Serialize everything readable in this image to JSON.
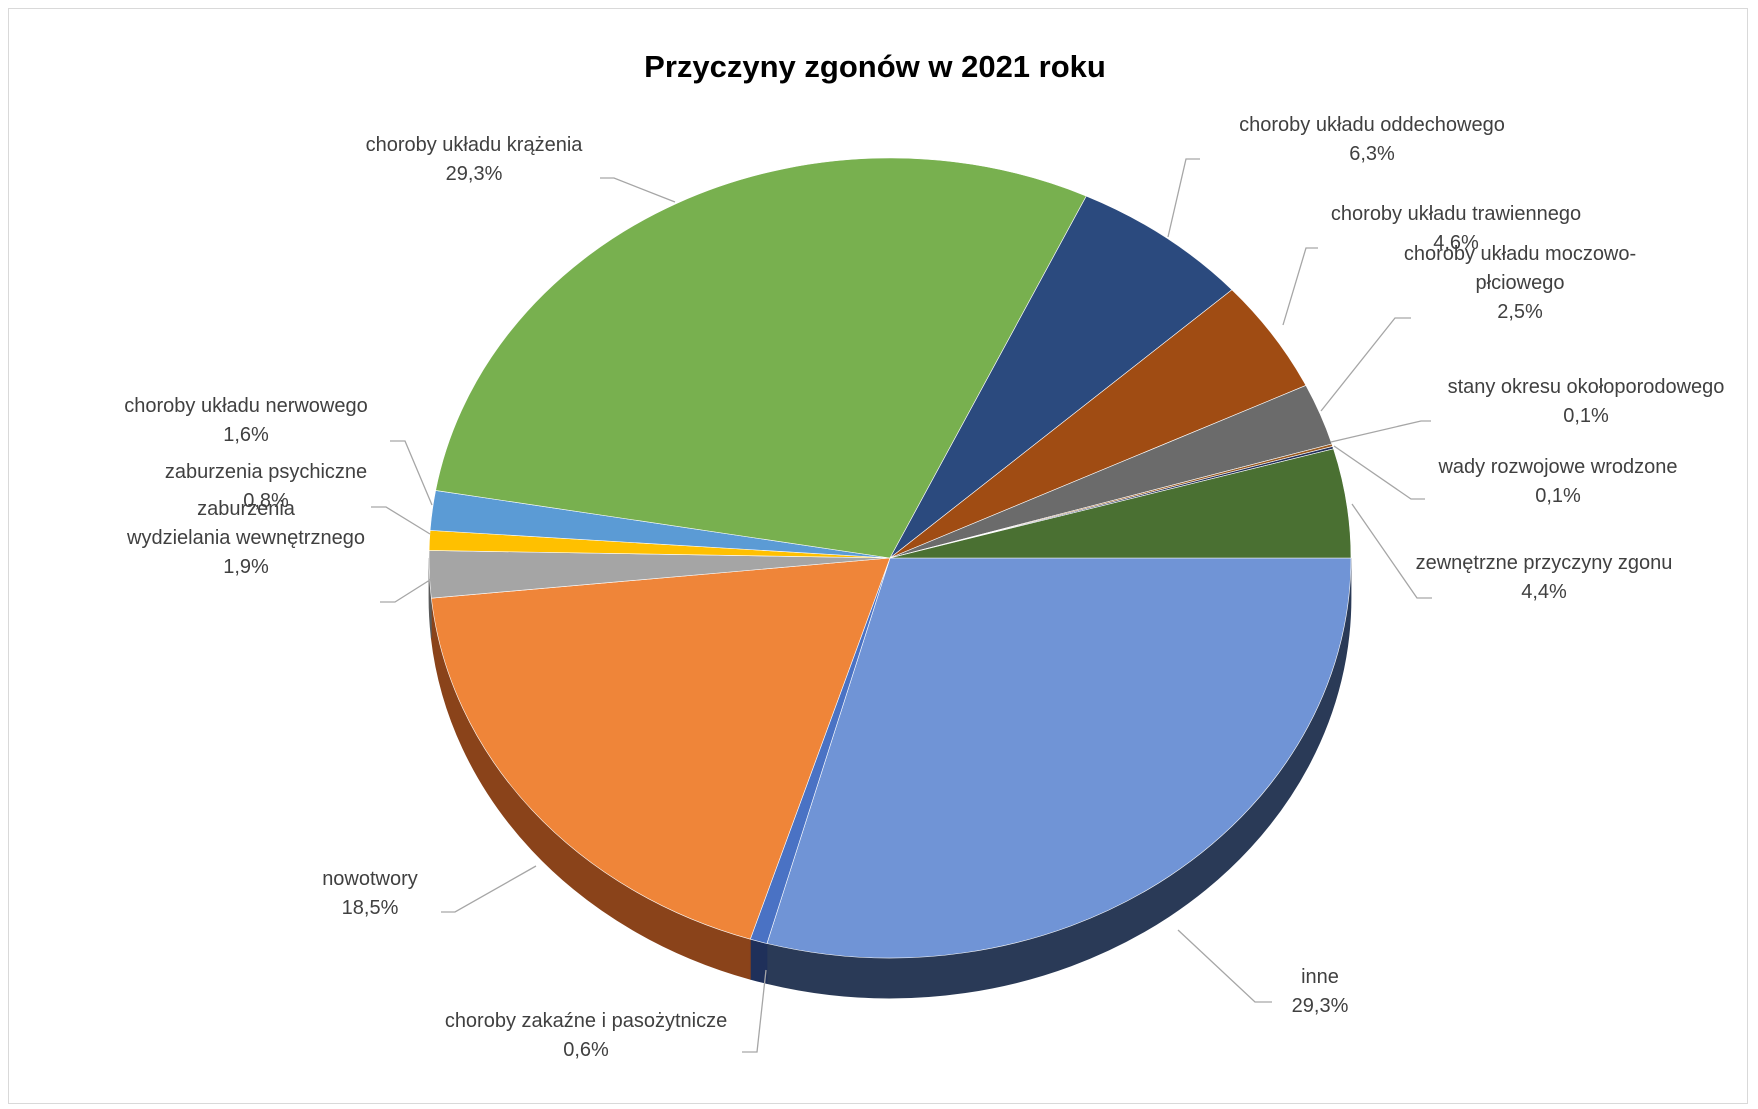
{
  "chart_data": {
    "type": "pie",
    "title": "Przyczyny zgonów w 2021 roku",
    "slices": [
      {
        "name": "inne",
        "value": 29.3,
        "label_lines": [
          "inne",
          "29,3%"
        ],
        "color": "#7094d6",
        "side_color": "#2a3a57"
      },
      {
        "name": "choroby zakaźne i pasożytnicze",
        "value": 0.6,
        "label_lines": [
          "choroby zakaźne i pasożytnicze",
          "0,6%"
        ],
        "color": "#4a72c4",
        "side_color": "#1f305a"
      },
      {
        "name": "nowotwory",
        "value": 18.5,
        "label_lines": [
          "nowotwory",
          "18,5%"
        ],
        "color": "#ef8539",
        "side_color": "#8a431a"
      },
      {
        "name": "zaburzenia wydzielania wewnętrznego",
        "value": 1.9,
        "label_lines": [
          "zaburzenia",
          "wydzielania wewnętrznego",
          "1,9%"
        ],
        "color": "#a5a5a5",
        "side_color": "#5a5a5a"
      },
      {
        "name": "zaburzenia psychiczne",
        "value": 0.8,
        "label_lines": [
          "zaburzenia psychiczne",
          "0,8%"
        ],
        "color": "#ffc000",
        "side_color": "#8a6a00"
      },
      {
        "name": "choroby układu nerwowego",
        "value": 1.6,
        "label_lines": [
          "choroby układu nerwowego",
          "1,6%"
        ],
        "color": "#5b9bd5",
        "side_color": "#2a4f70"
      },
      {
        "name": "choroby układu krążenia",
        "value": 29.3,
        "label_lines": [
          "choroby układu krążenia",
          "29,3%"
        ],
        "color": "#78b04f",
        "side_color": "#3c5a26"
      },
      {
        "name": "choroby układu oddechowego",
        "value": 6.3,
        "label_lines": [
          "choroby układu oddechowego",
          "6,3%"
        ],
        "color": "#2b4a7e",
        "side_color": "#16264a"
      },
      {
        "name": "choroby układu trawiennego",
        "value": 4.6,
        "label_lines": [
          "choroby układu trawiennego",
          "4,6%"
        ],
        "color": "#a04c13",
        "side_color": "#5a2a0a"
      },
      {
        "name": "choroby układu moczowo-płciowego",
        "value": 2.5,
        "label_lines": [
          "choroby układu moczowo-",
          "płciowego",
          "2,5%"
        ],
        "color": "#6b6b6b",
        "side_color": "#3a3a3a"
      },
      {
        "name": "stany okresu okołoporodowego",
        "value": 0.1,
        "label_lines": [
          "stany okresu okołoporodowego",
          "0,1%"
        ],
        "color": "#9a5a20",
        "side_color": "#5a3410"
      },
      {
        "name": "wady rozwojowe wrodzone",
        "value": 0.1,
        "label_lines": [
          "wady rozwojowe wrodzone",
          "0,1%"
        ],
        "color": "#22305a",
        "side_color": "#111a33"
      },
      {
        "name": "zewnętrzne przyczyny zgonu",
        "value": 4.4,
        "label_lines": [
          "zewnętrzne przyczyny zgonu",
          "4,4%"
        ],
        "color": "#4a7032",
        "side_color": "#2a4018"
      }
    ]
  }
}
